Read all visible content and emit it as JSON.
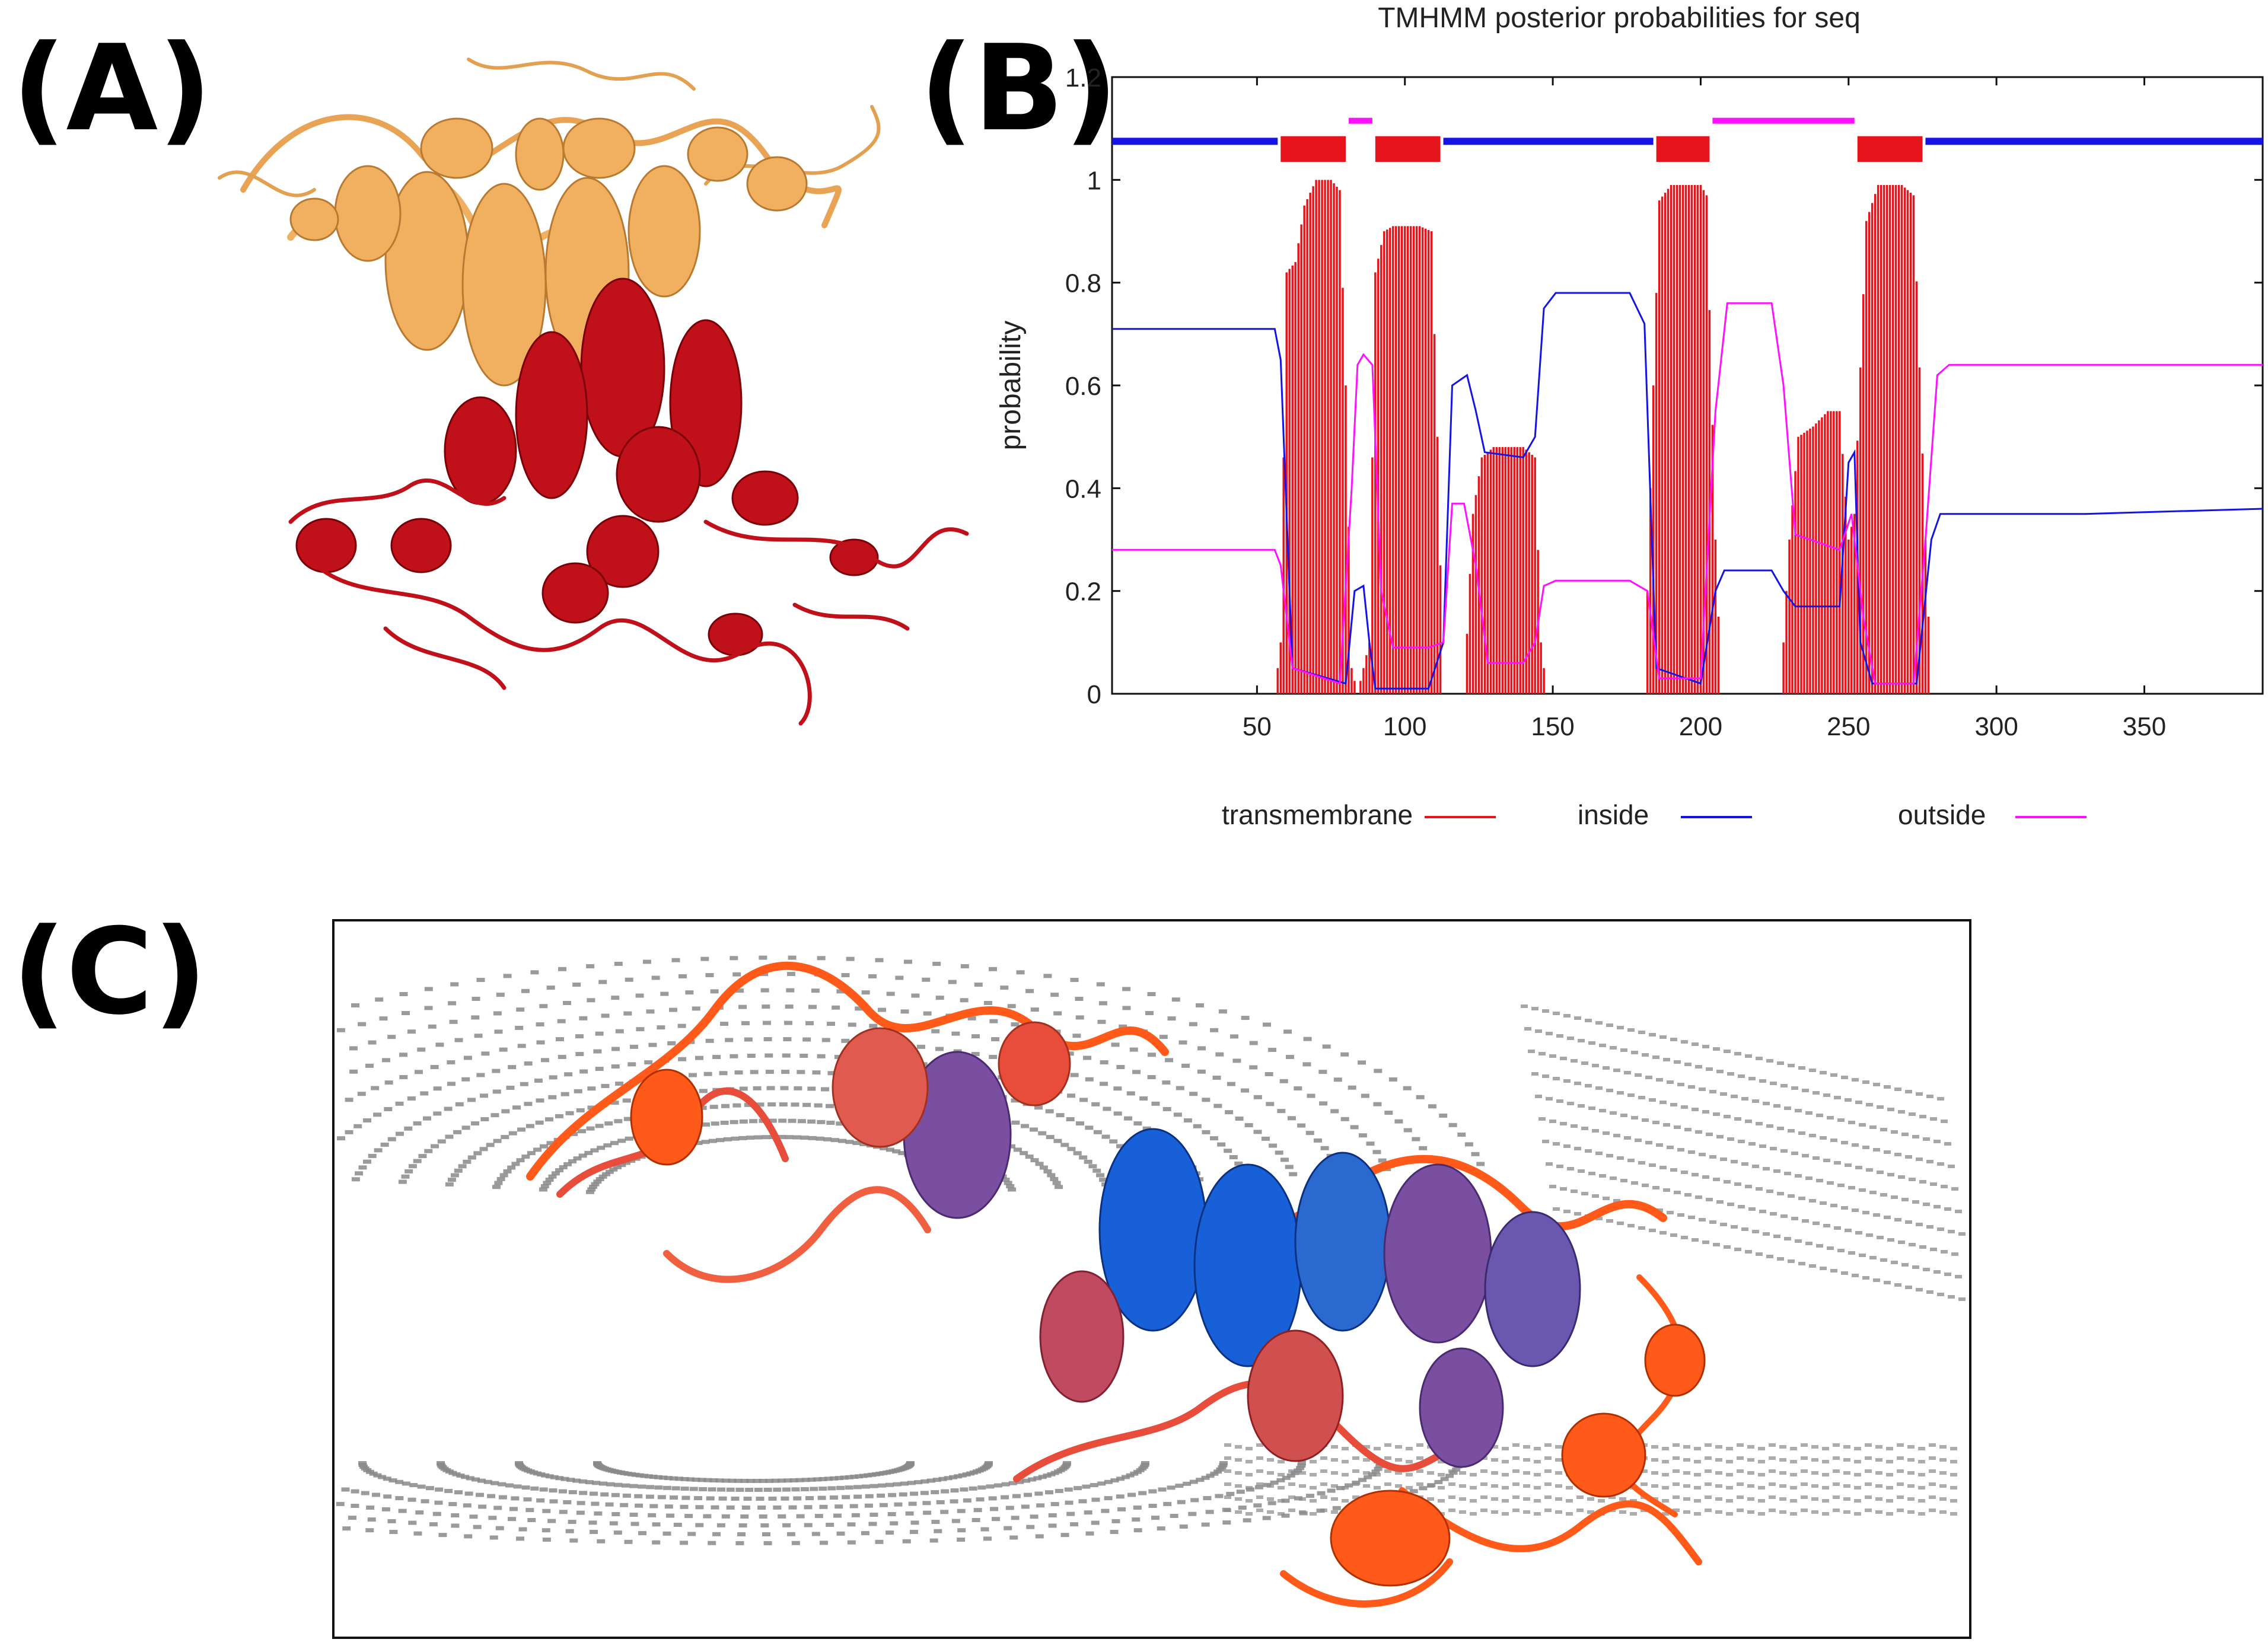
{
  "panels": {
    "a": "(A)",
    "b": "(B)",
    "c": "(C)"
  },
  "colors": {
    "protein_top": "#f0b060",
    "protein_bottom": "#c0101a",
    "transmembrane": "#e8141c",
    "inside": "#1414e6",
    "outside": "#ff10ff",
    "membrane_dots": "#8a8a8a",
    "protein_c_orange": "#ff5a1a",
    "protein_c_blue": "#1860d8",
    "protein_c_purple": "#7a4ea0"
  },
  "chart_data": {
    "type": "line",
    "title": "TMHMM posterior probabilities for seq",
    "xlabel": "",
    "ylabel": "probability",
    "xlim": [
      1,
      390
    ],
    "ylim": [
      0,
      1.2
    ],
    "x_ticks": [
      "50",
      "100",
      "150",
      "200",
      "250",
      "300",
      "350"
    ],
    "y_ticks": [
      "0",
      "0.2",
      "0.4",
      "0.6",
      "0.8",
      "1",
      "1.2"
    ],
    "legend": [
      {
        "name": "transmembrane",
        "color": "#e8141c"
      },
      {
        "name": "inside",
        "color": "#1414e6"
      },
      {
        "name": "outside",
        "color": "#ff10ff"
      }
    ],
    "legend_position": "bottom",
    "topology_bar": [
      {
        "region": "inside",
        "start": 1,
        "end": 57
      },
      {
        "region": "transmembrane",
        "start": 58,
        "end": 80
      },
      {
        "region": "outside",
        "start": 81,
        "end": 89
      },
      {
        "region": "transmembrane",
        "start": 90,
        "end": 112
      },
      {
        "region": "inside",
        "start": 113,
        "end": 184
      },
      {
        "region": "transmembrane",
        "start": 185,
        "end": 203
      },
      {
        "region": "outside",
        "start": 204,
        "end": 252
      },
      {
        "region": "transmembrane",
        "start": 253,
        "end": 275
      },
      {
        "region": "inside",
        "start": 276,
        "end": 390
      }
    ],
    "series": [
      {
        "name": "transmembrane",
        "style": "impulses",
        "points": [
          [
            56,
            0
          ],
          [
            58,
            0.1
          ],
          [
            60,
            0.82
          ],
          [
            63,
            0.84
          ],
          [
            66,
            0.95
          ],
          [
            70,
            1.0
          ],
          [
            75,
            1.0
          ],
          [
            78,
            0.98
          ],
          [
            80,
            0.6
          ],
          [
            82,
            0.05
          ],
          [
            84,
            0
          ],
          [
            88,
            0.1
          ],
          [
            90,
            0.82
          ],
          [
            93,
            0.9
          ],
          [
            96,
            0.91
          ],
          [
            105,
            0.91
          ],
          [
            109,
            0.9
          ],
          [
            111,
            0.5
          ],
          [
            113,
            0
          ],
          [
            120,
            0
          ],
          [
            123,
            0.35
          ],
          [
            126,
            0.46
          ],
          [
            130,
            0.48
          ],
          [
            140,
            0.48
          ],
          [
            144,
            0.46
          ],
          [
            146,
            0.1
          ],
          [
            148,
            0
          ],
          [
            181,
            0
          ],
          [
            184,
            0.6
          ],
          [
            186,
            0.96
          ],
          [
            190,
            0.99
          ],
          [
            200,
            0.99
          ],
          [
            202,
            0.97
          ],
          [
            205,
            0.3
          ],
          [
            207,
            0
          ],
          [
            227,
            0
          ],
          [
            230,
            0.3
          ],
          [
            233,
            0.5
          ],
          [
            238,
            0.52
          ],
          [
            243,
            0.55
          ],
          [
            247,
            0.55
          ],
          [
            250,
            0.3
          ],
          [
            252,
            0.35
          ],
          [
            256,
            0.92
          ],
          [
            260,
            0.99
          ],
          [
            268,
            0.99
          ],
          [
            272,
            0.97
          ],
          [
            276,
            0.3
          ],
          [
            278,
            0
          ]
        ]
      },
      {
        "name": "inside",
        "points": [
          [
            1,
            0.71
          ],
          [
            56,
            0.71
          ],
          [
            58,
            0.65
          ],
          [
            62,
            0.05
          ],
          [
            80,
            0.02
          ],
          [
            83,
            0.2
          ],
          [
            86,
            0.21
          ],
          [
            88,
            0.1
          ],
          [
            90,
            0.01
          ],
          [
            108,
            0.01
          ],
          [
            113,
            0.1
          ],
          [
            116,
            0.6
          ],
          [
            121,
            0.62
          ],
          [
            124,
            0.55
          ],
          [
            127,
            0.47
          ],
          [
            140,
            0.46
          ],
          [
            144,
            0.5
          ],
          [
            147,
            0.75
          ],
          [
            151,
            0.78
          ],
          [
            176,
            0.78
          ],
          [
            181,
            0.72
          ],
          [
            185,
            0.05
          ],
          [
            200,
            0.02
          ],
          [
            205,
            0.2
          ],
          [
            208,
            0.24
          ],
          [
            224,
            0.24
          ],
          [
            228,
            0.2
          ],
          [
            232,
            0.17
          ],
          [
            247,
            0.17
          ],
          [
            250,
            0.45
          ],
          [
            252,
            0.47
          ],
          [
            254,
            0.1
          ],
          [
            258,
            0.02
          ],
          [
            273,
            0.02
          ],
          [
            278,
            0.3
          ],
          [
            281,
            0.35
          ],
          [
            330,
            0.35
          ],
          [
            390,
            0.36
          ]
        ]
      },
      {
        "name": "outside",
        "points": [
          [
            1,
            0.28
          ],
          [
            56,
            0.28
          ],
          [
            58,
            0.25
          ],
          [
            62,
            0.05
          ],
          [
            78,
            0.02
          ],
          [
            82,
            0.4
          ],
          [
            84,
            0.64
          ],
          [
            86,
            0.66
          ],
          [
            89,
            0.64
          ],
          [
            92,
            0.2
          ],
          [
            96,
            0.09
          ],
          [
            108,
            0.09
          ],
          [
            113,
            0.1
          ],
          [
            116,
            0.37
          ],
          [
            120,
            0.37
          ],
          [
            124,
            0.25
          ],
          [
            128,
            0.06
          ],
          [
            140,
            0.06
          ],
          [
            144,
            0.1
          ],
          [
            147,
            0.21
          ],
          [
            151,
            0.22
          ],
          [
            176,
            0.22
          ],
          [
            182,
            0.2
          ],
          [
            186,
            0.03
          ],
          [
            200,
            0.03
          ],
          [
            205,
            0.55
          ],
          [
            209,
            0.76
          ],
          [
            224,
            0.76
          ],
          [
            228,
            0.6
          ],
          [
            232,
            0.31
          ],
          [
            247,
            0.28
          ],
          [
            251,
            0.35
          ],
          [
            255,
            0.15
          ],
          [
            259,
            0.02
          ],
          [
            272,
            0.02
          ],
          [
            276,
            0.3
          ],
          [
            280,
            0.62
          ],
          [
            284,
            0.64
          ],
          [
            390,
            0.64
          ]
        ]
      }
    ]
  }
}
